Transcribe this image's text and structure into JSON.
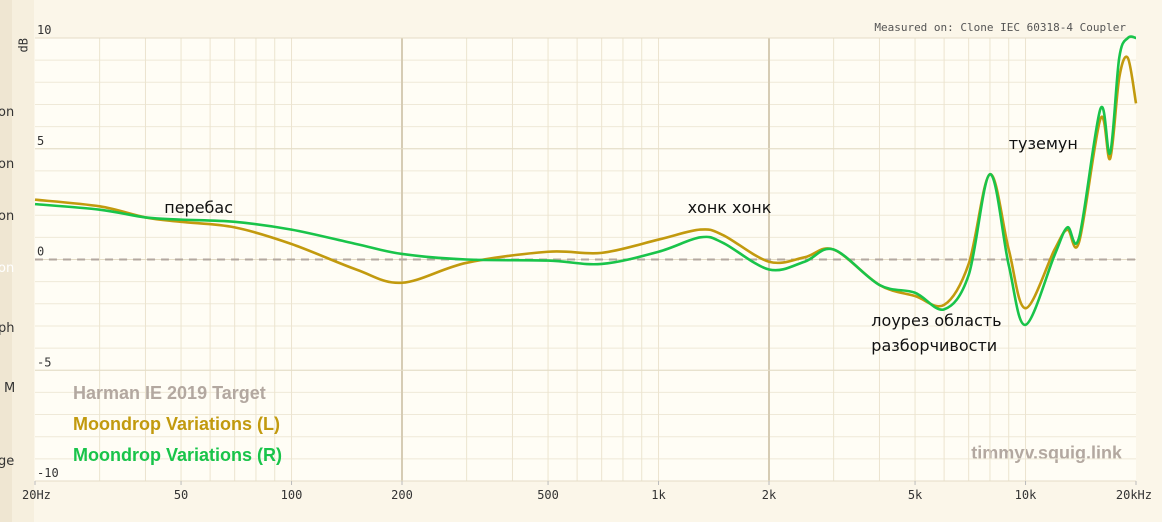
{
  "chart_data": {
    "type": "line",
    "measured_on": "Measured on: Clone IEC 60318-4 Coupler",
    "watermark": "timmyv.squig.link",
    "y_label": "dB",
    "log_x": true,
    "xlim": [
      20,
      20000
    ],
    "ylim": [
      -10,
      10
    ],
    "xticks": [
      {
        "value": 20,
        "label": "20Hz"
      },
      50,
      100,
      200,
      500,
      {
        "value": 1000,
        "label": "1k"
      },
      {
        "value": 2000,
        "label": "2k"
      },
      {
        "value": 5000,
        "label": "5k"
      },
      {
        "value": 10000,
        "label": "10k"
      },
      {
        "value": 20000,
        "label": "20kHz"
      }
    ],
    "yticks": [
      10,
      5,
      0,
      -5,
      -10
    ],
    "x_major_grid": [
      200,
      2000
    ],
    "x_minor_grid": [
      30,
      40,
      50,
      60,
      70,
      80,
      90,
      100,
      300,
      400,
      500,
      600,
      700,
      800,
      900,
      1000,
      3000,
      4000,
      5000,
      6000,
      7000,
      8000,
      9000,
      10000
    ],
    "y_minor_grid": [
      9,
      8,
      7,
      6,
      5,
      4,
      3,
      2,
      1,
      -1,
      -2,
      -3,
      -4,
      -5,
      -6,
      -7,
      -8,
      -9
    ],
    "x": [
      20,
      30,
      40,
      50,
      70,
      100,
      150,
      200,
      300,
      500,
      700,
      1000,
      1300,
      1500,
      2000,
      2500,
      3000,
      4000,
      5000,
      6000,
      7000,
      8000,
      9000,
      10000,
      12000,
      13000,
      14000,
      16000,
      17000,
      18000,
      19000,
      20000
    ],
    "series": [
      {
        "name": "Harman IE 2019 Target",
        "color": "#b3a8a0",
        "dashed": true,
        "values": [
          0,
          0,
          0,
          0,
          0,
          0,
          0,
          0,
          0,
          0,
          0,
          0,
          0,
          0,
          0,
          0,
          0,
          0,
          0,
          0,
          0,
          0,
          0,
          0,
          0,
          0,
          0,
          0,
          0,
          0,
          0,
          0
        ]
      },
      {
        "name": "Moondrop Variations (L)",
        "color": "#c29a0e",
        "values": [
          2.7,
          2.4,
          1.9,
          1.7,
          1.45,
          0.7,
          -0.45,
          -1.05,
          -0.15,
          0.35,
          0.3,
          0.9,
          1.35,
          1.1,
          -0.1,
          0.1,
          0.45,
          -1.15,
          -1.65,
          -2.05,
          -0.2,
          3.85,
          0.45,
          -2.2,
          0.45,
          1.35,
          0.8,
          6.35,
          4.55,
          8.2,
          9.1,
          7.05
        ]
      },
      {
        "name": "Moondrop Variations (R)",
        "color": "#19c44a",
        "values": [
          2.5,
          2.25,
          1.9,
          1.8,
          1.7,
          1.35,
          0.7,
          0.25,
          0,
          -0.05,
          -0.2,
          0.35,
          1.0,
          0.75,
          -0.45,
          -0.1,
          0.45,
          -1.15,
          -1.5,
          -2.25,
          -0.7,
          3.85,
          -0.25,
          -2.95,
          0.2,
          1.45,
          1.0,
          6.8,
          4.8,
          9.1,
          10,
          10
        ]
      }
    ],
    "annotations": [
      {
        "lines": [
          "перебас"
        ],
        "x": 45,
        "y": 2.1
      },
      {
        "lines": [
          "хонк хонк"
        ],
        "x": 1200,
        "y": 2.1
      },
      {
        "lines": [
          "лоурез область",
          "разборчивости"
        ],
        "x": 3800,
        "y": -3.0
      },
      {
        "lines": [
          "туземун"
        ],
        "x": 9000,
        "y": 5.0
      }
    ],
    "sidebar_fragments": [
      "on",
      "on",
      "on",
      "on",
      "ph",
      "M",
      "ge"
    ]
  }
}
